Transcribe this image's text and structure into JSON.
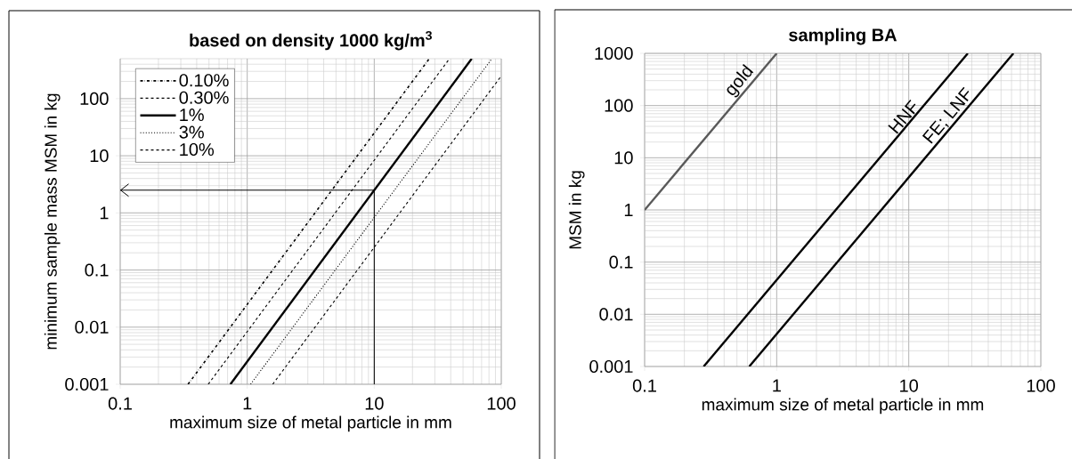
{
  "chart_data": [
    {
      "type": "line",
      "title": "based on density 1000 kg/m$^{3}$",
      "xlabel": "maximum size of metal particle in mm",
      "ylabel": "minimum sample mass MSM in kg",
      "log": "xy",
      "xlim": [
        0.1,
        100
      ],
      "ylim": [
        0.001,
        500
      ],
      "xticks": [
        0.1,
        1,
        10,
        100
      ],
      "yticks": [
        0.001,
        0.01,
        0.1,
        1,
        10,
        100
      ],
      "grid": true,
      "legend": "top left",
      "marker": "none",
      "series": [
        {
          "name": "0.10%",
          "color": "#000000",
          "line_style": "dashdot",
          "x": [
            0.342,
            27.1
          ],
          "values": [
            0.001,
            500
          ]
        },
        {
          "name": "0.30%",
          "color": "#000000",
          "line_style": "dashed",
          "x": [
            0.493,
            39.1
          ],
          "values": [
            0.001,
            500
          ]
        },
        {
          "name": "1%",
          "color": "#000000",
          "line_style": "solid",
          "x": [
            0.737,
            58.5
          ],
          "values": [
            0.001,
            500
          ]
        },
        {
          "name": "3%",
          "color": "#000000",
          "line_style": "dotted",
          "x": [
            1.063,
            84.3
          ],
          "values": [
            0.001,
            500
          ]
        },
        {
          "name": "10%",
          "color": "#000000",
          "line_style": "dashed",
          "x": [
            1.587,
            100
          ],
          "values": [
            0.001,
            250
          ]
        },
        {
          "color": "#000000",
          "line_style": "solid",
          "x": [
            10,
            10,
            0.1
          ],
          "values": [
            0.001,
            2.5,
            2.5
          ]
        }
      ]
    },
    {
      "type": "line",
      "title": "sampling BA",
      "xlabel": "maximum size of metal particle in mm",
      "ylabel": "MSM in kg",
      "log": "xy",
      "xlim": [
        0.1,
        100
      ],
      "ylim": [
        0.001,
        1000
      ],
      "xticks": [
        0.1,
        1,
        10,
        100
      ],
      "yticks": [
        0.001,
        0.01,
        0.1,
        1,
        10,
        100,
        1000
      ],
      "grid": true,
      "legend": false,
      "marker": "none",
      "series": [
        {
          "name": "gold",
          "color": "#595959",
          "line_style": "solid",
          "x": [
            0.1,
            1
          ],
          "values": [
            1,
            1000
          ]
        },
        {
          "name": "HNF",
          "color": "#000000",
          "line_style": "solid",
          "x": [
            0.28,
            28
          ],
          "values": [
            0.001,
            1000
          ]
        },
        {
          "name": "FE; LNF",
          "color": "#000000",
          "line_style": "solid",
          "x": [
            0.62,
            62
          ],
          "values": [
            0.001,
            1000
          ]
        }
      ]
    }
  ]
}
